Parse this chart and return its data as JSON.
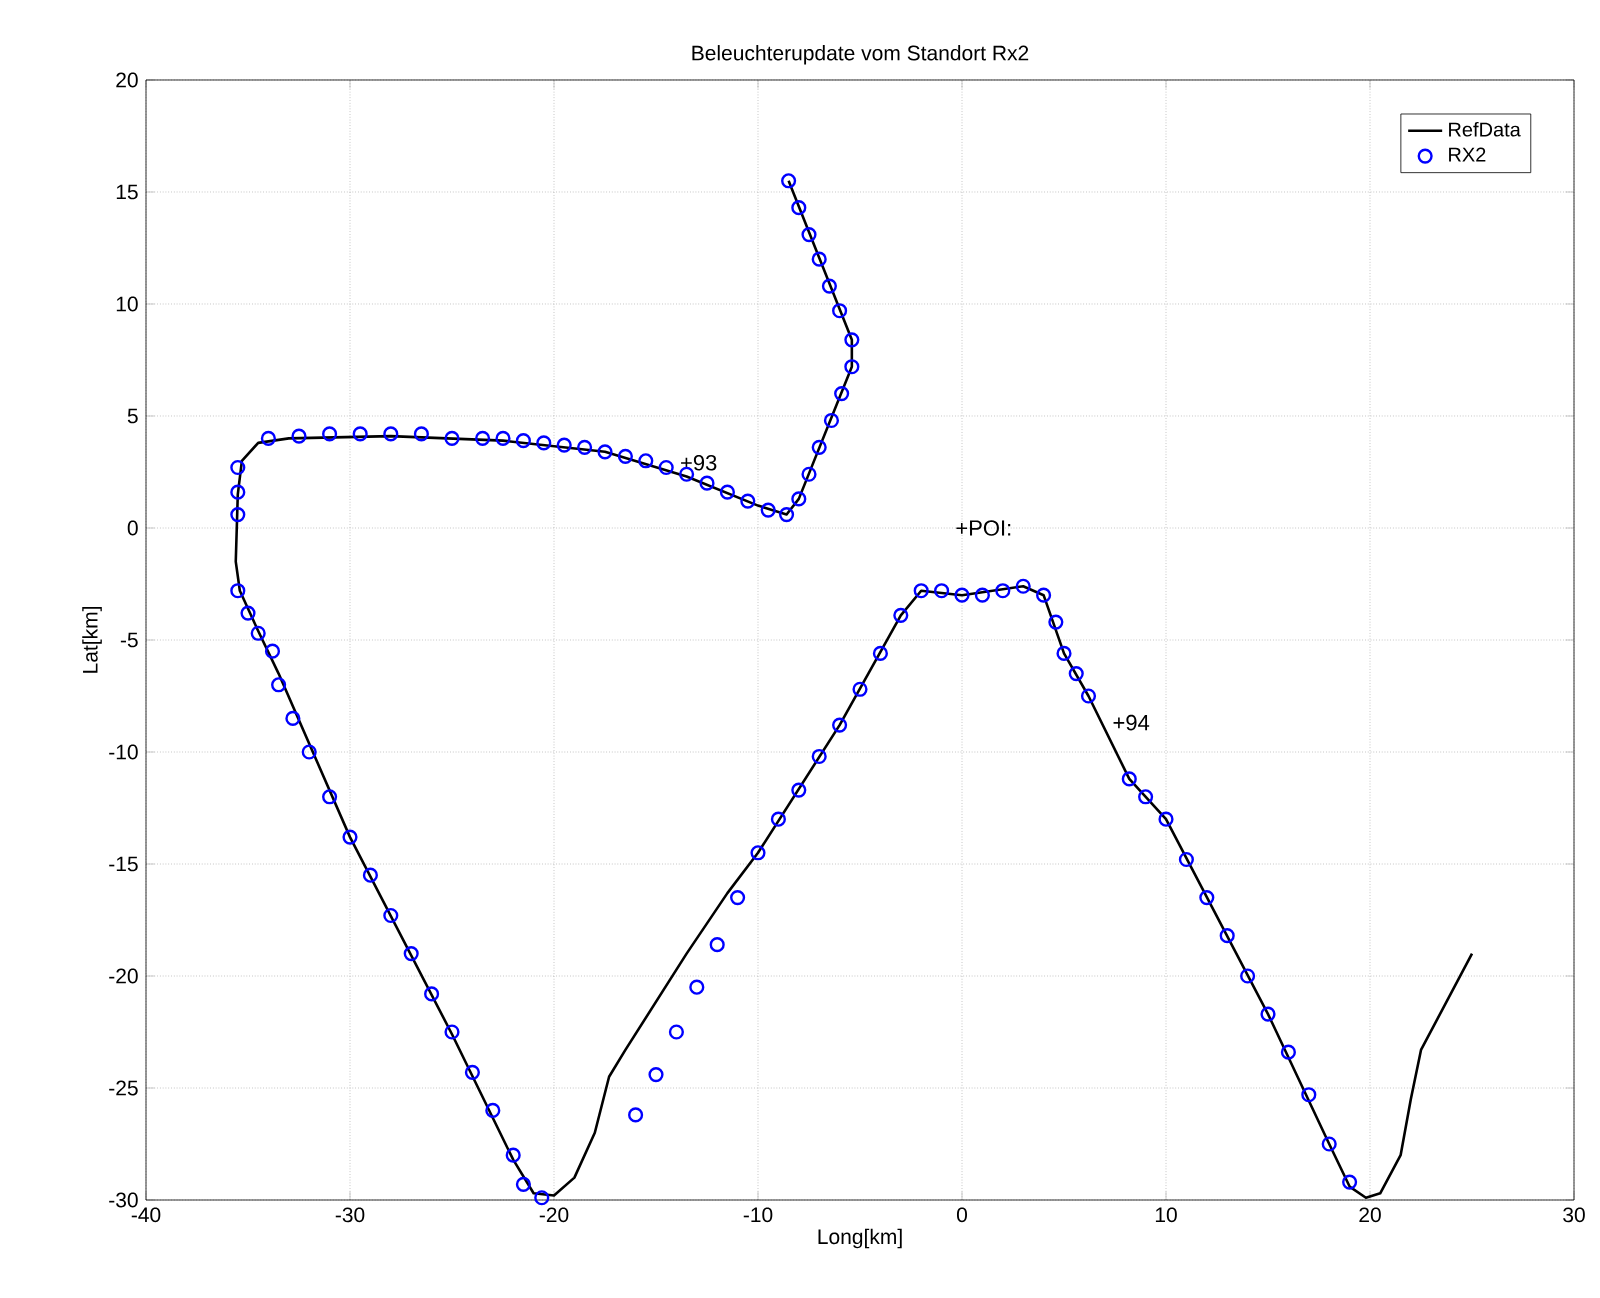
{
  "chart_data": {
    "type": "scatter",
    "title": "Beleuchterupdate vom Standort Rx2",
    "xlabel": "Long[km]",
    "ylabel": "Lat[km]",
    "xlim": [
      -40,
      30
    ],
    "xticks": [
      -40,
      -30,
      -20,
      -10,
      0,
      10,
      20,
      30
    ],
    "ylim": [
      -30,
      20
    ],
    "yticks": [
      -30,
      -25,
      -20,
      -15,
      -10,
      -5,
      0,
      5,
      10,
      15,
      20
    ],
    "grid": true,
    "legend": "top right",
    "annotations": [
      "+POI:",
      {
        "text": "+93",
        "x": -13.5,
        "y": 2.1
      },
      {
        "text": "+94",
        "x": 7.7,
        "y": -9.5
      }
    ],
    "series": [
      {
        "name": "RefData",
        "type": "line",
        "line_style": "solid",
        "marker": "none",
        "color": "#000000",
        "x": [
          -8.5,
          -5.4,
          -5.4,
          -8,
          -8.6,
          -10,
          -13.5,
          -17.5,
          -22.5,
          -28,
          -33,
          -34.5,
          -35.3,
          -35.5,
          -35.6,
          -35.4,
          -34.5,
          -33.5,
          -30,
          -25,
          -22,
          -21,
          -20,
          -19,
          -18,
          -17.3,
          -16.5,
          -13.5,
          -11.5,
          -10,
          -6,
          -3,
          -2,
          0,
          3,
          4,
          5,
          6.2,
          8.2,
          10,
          15,
          18,
          19,
          19.8,
          20.5,
          21.5,
          22,
          22.5,
          25
        ],
        "values": [
          15.5,
          8.4,
          7.2,
          1.3,
          0.6,
          1,
          2.3,
          3.4,
          3.9,
          4.1,
          4,
          3.8,
          3,
          1.5,
          -1.5,
          -2.8,
          -4.6,
          -6.5,
          -13.8,
          -22.6,
          -28.2,
          -29.7,
          -29.8,
          -29,
          -27,
          -24.5,
          -23.3,
          -19,
          -16.3,
          -14.5,
          -8.8,
          -3.9,
          -2.8,
          -3,
          -2.6,
          -3,
          -5.6,
          -7.5,
          -11.2,
          -13,
          -21.7,
          -27.5,
          -29.4,
          -29.9,
          -29.7,
          -28,
          -25.5,
          -23.3,
          -19
        ]
      },
      {
        "name": "RX2",
        "marker": "circle",
        "color": "#0000ff",
        "x": [
          -8.5,
          -8,
          -7.5,
          -7,
          -6.5,
          -6,
          -5.4,
          -5.4,
          -5.9,
          -6.4,
          -7,
          -7.5,
          -8,
          -8.6,
          -9.5,
          -10.5,
          -11.5,
          -12.5,
          -13.5,
          -14.5,
          -15.5,
          -16.5,
          -17.5,
          -18.5,
          -19.5,
          -20.5,
          -21.5,
          -22.5,
          -23.5,
          -25,
          -26.5,
          -28,
          -29.5,
          -31,
          -32.5,
          -34,
          -35.5,
          -35.5,
          -35.5,
          -35.5,
          -35,
          -34.5,
          -33.8,
          -33.5,
          -32.8,
          -32,
          -31,
          -30,
          -29,
          -28,
          -27,
          -26,
          -25,
          -24,
          -23,
          -22,
          -21.5,
          -20.6,
          -16,
          -15,
          -14,
          -13,
          -12,
          -11,
          -10,
          -9,
          -8,
          -7,
          -6,
          -5,
          -4,
          -3,
          -2,
          -1,
          0,
          1,
          2,
          3,
          4,
          4.6,
          5,
          5.6,
          6.2,
          8.2,
          9,
          10,
          11,
          12,
          13,
          14,
          15,
          16,
          17,
          18,
          19
        ],
        "values": [
          15.5,
          14.3,
          13.1,
          12,
          10.8,
          9.7,
          8.4,
          7.2,
          6,
          4.8,
          3.6,
          2.4,
          1.3,
          0.6,
          0.8,
          1.2,
          1.6,
          2,
          2.4,
          2.7,
          3,
          3.2,
          3.4,
          3.6,
          3.7,
          3.8,
          3.9,
          4,
          4,
          4,
          4.2,
          4.2,
          4.2,
          4.2,
          4.1,
          4,
          2.7,
          1.6,
          0.6,
          -2.8,
          -3.8,
          -4.7,
          -5.5,
          -7,
          -8.5,
          -10,
          -12,
          -13.8,
          -15.5,
          -17.3,
          -19,
          -20.8,
          -22.5,
          -24.3,
          -26,
          -28,
          -29.3,
          -29.9,
          -26.2,
          -24.4,
          -22.5,
          -20.5,
          -18.6,
          -16.5,
          -14.5,
          -13,
          -11.7,
          -10.2,
          -8.8,
          -7.2,
          -5.6,
          -3.9,
          -2.8,
          -2.8,
          -3,
          -3,
          -2.8,
          -2.6,
          -3,
          -4.2,
          -5.6,
          -6.5,
          -7.5,
          -11.2,
          -12,
          -13,
          -14.8,
          -16.5,
          -18.2,
          -20,
          -21.7,
          -23.4,
          -25.3,
          -27.5,
          -29.2
        ]
      }
    ]
  }
}
